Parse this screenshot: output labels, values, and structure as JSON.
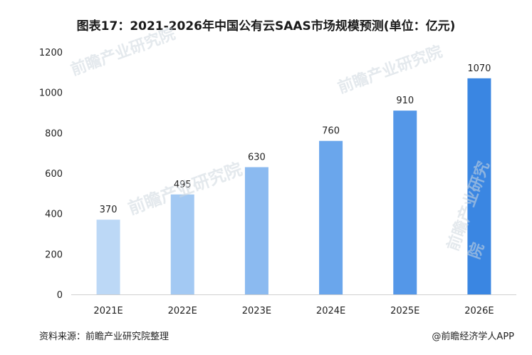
{
  "title": "图表17：2021-2026年中国公有云SAAS市场规模预测(单位：亿元)",
  "footer": {
    "source": "资料来源：前瞻产业研究院整理",
    "brand": "@前瞻经济学人APP"
  },
  "watermark": {
    "text": "前瞻产业研究院"
  },
  "chart_data": {
    "type": "bar",
    "title": "图表17：2021-2026年中国公有云SAAS市场规模预测(单位：亿元)",
    "categories": [
      "2021E",
      "2022E",
      "2023E",
      "2024E",
      "2025E",
      "2026E"
    ],
    "values": [
      370,
      495,
      630,
      760,
      910,
      1070
    ],
    "ylim": [
      0,
      1200
    ],
    "yticks": [
      0,
      200,
      400,
      600,
      800,
      1000,
      1200
    ],
    "grid": false,
    "colors": [
      "#bcd8f6",
      "#a3c9f3",
      "#8bbaf0",
      "#6aa6ec",
      "#5497e8",
      "#3a86e2"
    ]
  }
}
